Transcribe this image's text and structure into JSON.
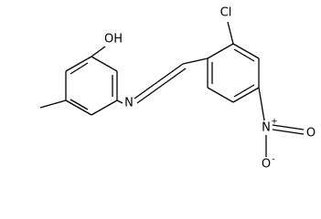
{
  "atoms": [
    {
      "label": "OH"
    },
    {
      "label": "N"
    },
    {
      "label": "Cl"
    },
    {
      "label": "N"
    },
    {
      "label": "O"
    },
    {
      "label": "O"
    }
  ],
  "charges": [
    "+",
    "-"
  ]
}
